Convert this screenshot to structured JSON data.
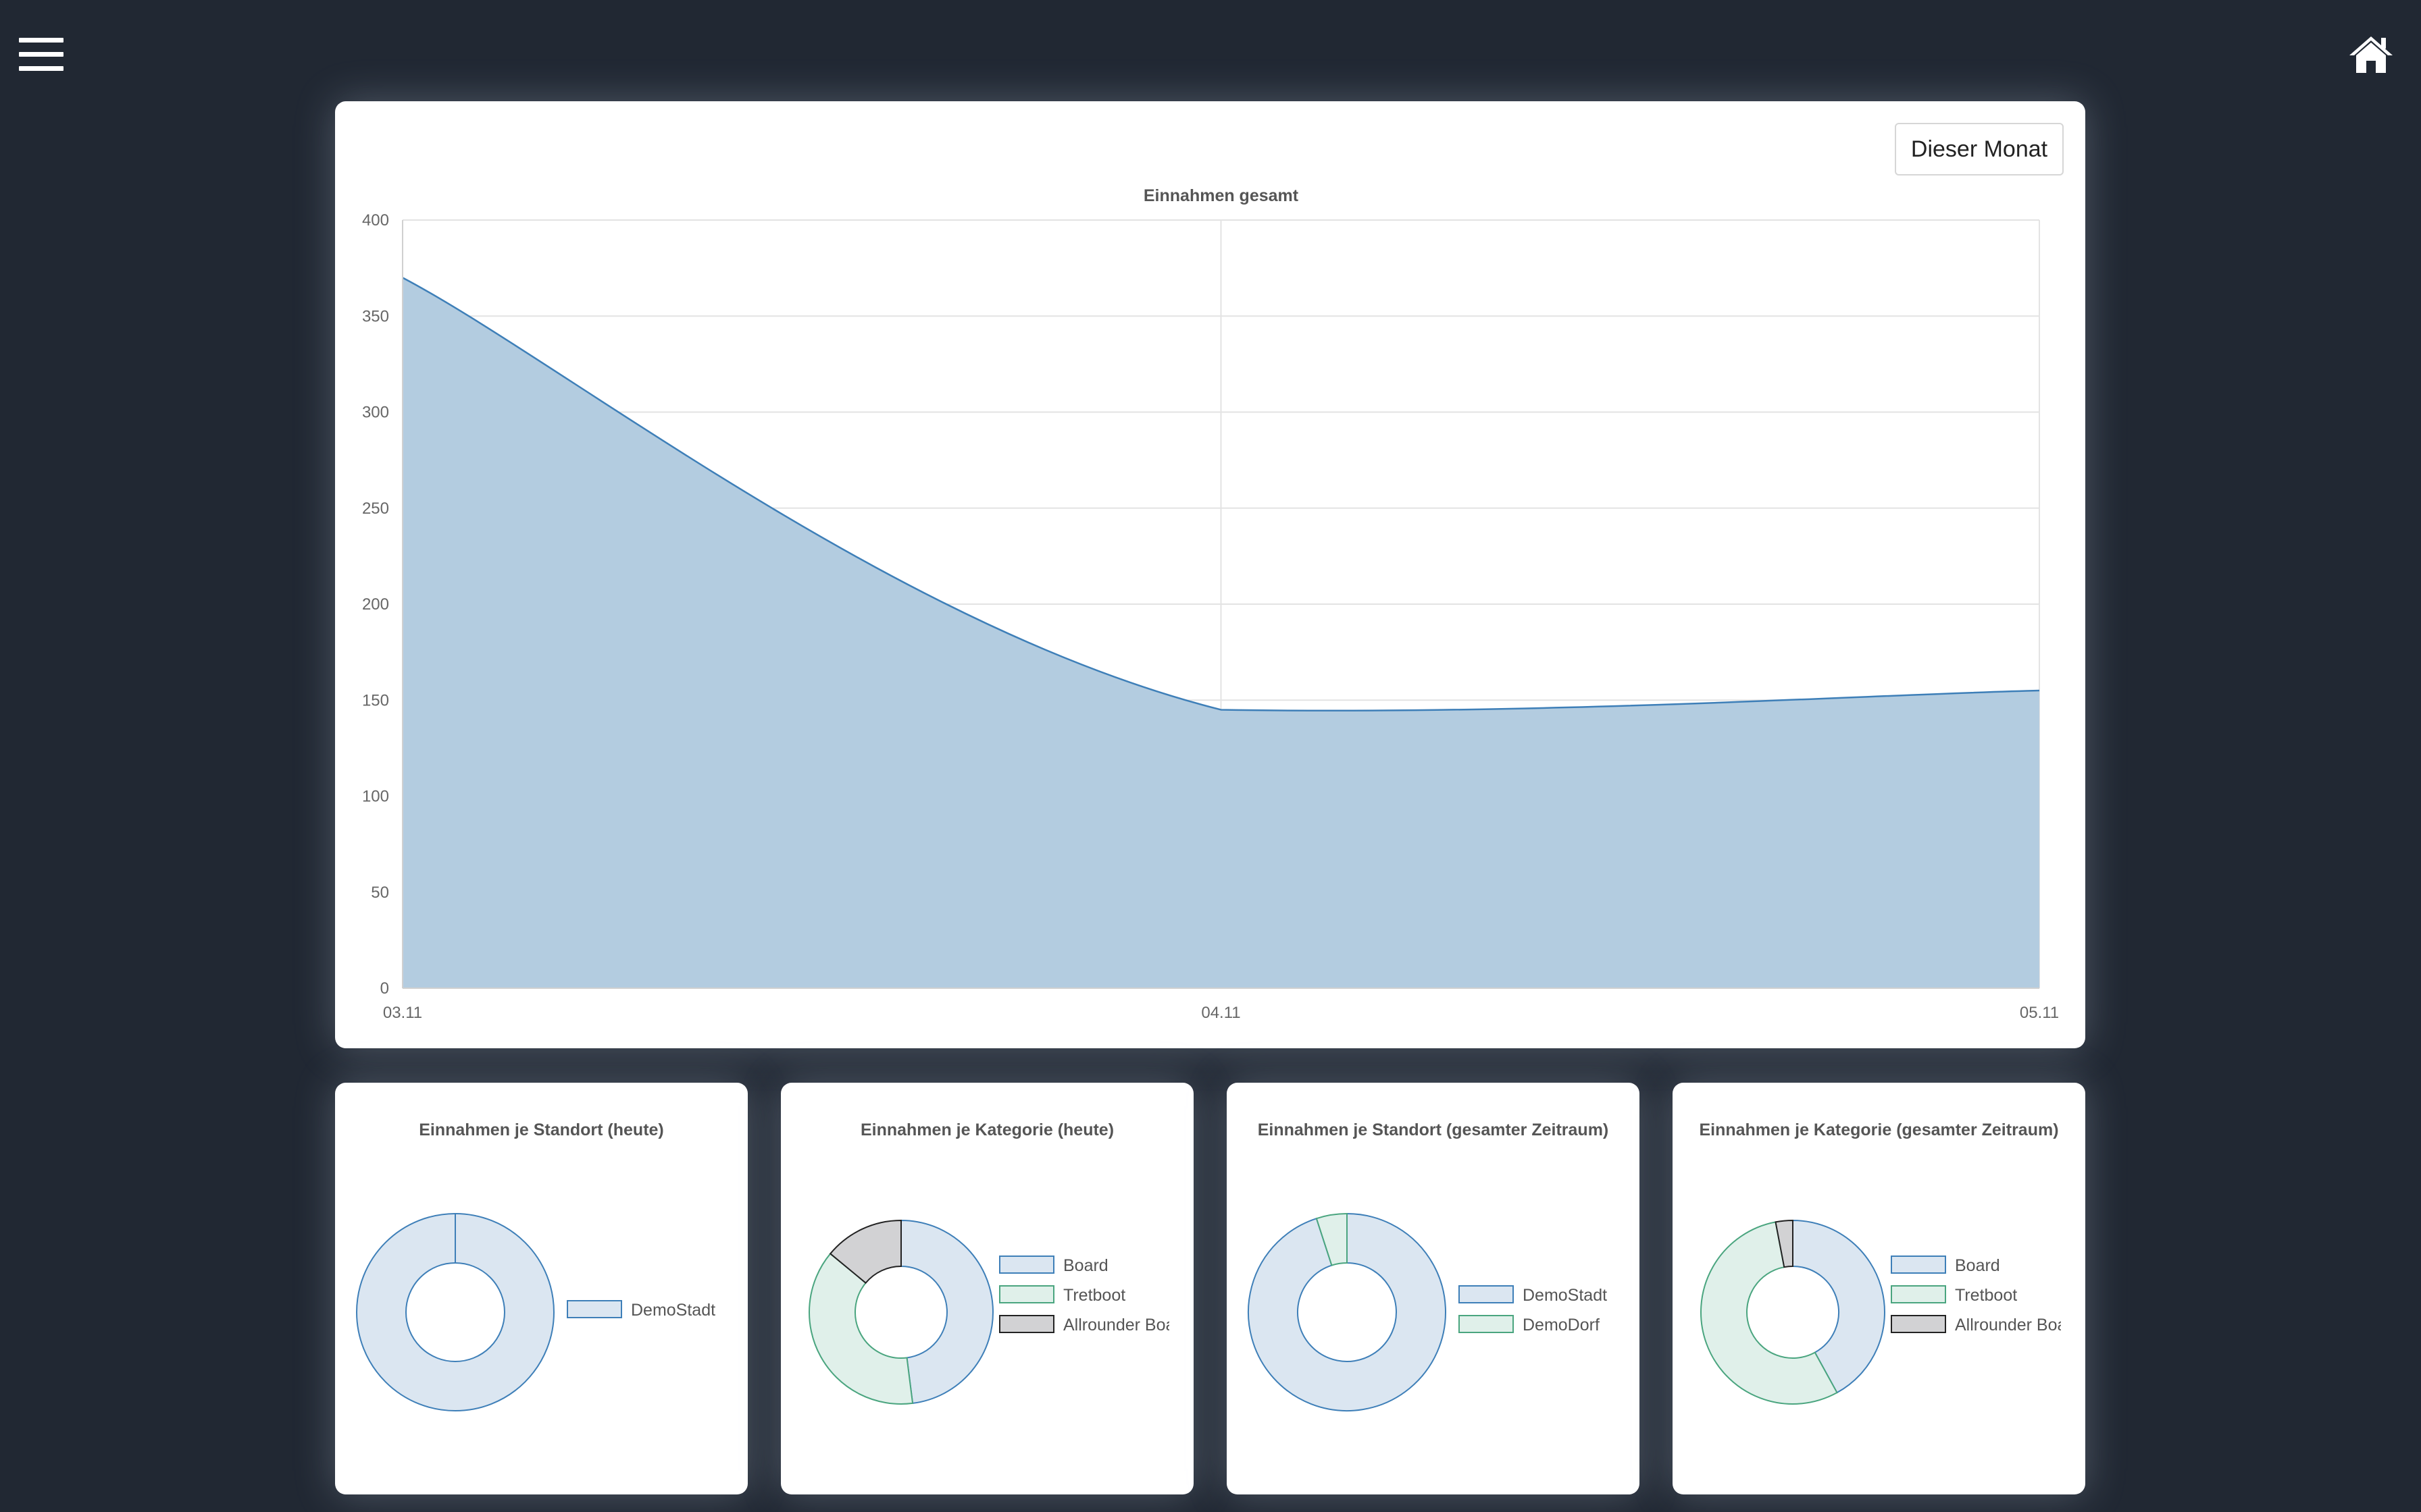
{
  "nav": {
    "menu_icon": "hamburger-menu-icon",
    "home_icon": "home-icon"
  },
  "main": {
    "period_button": "Dieser Monat"
  },
  "colors": {
    "blue_fill": "#b3cce0",
    "blue_line": "#3e7fb8",
    "blue_light": "#dbe6f1",
    "green_light": "#e0f0ea",
    "green_line": "#4aa57f",
    "grey_light": "#d2d2d4",
    "grey_line": "#222222"
  },
  "chart_data": [
    {
      "type": "area",
      "title": "Einnahmen gesamt",
      "x": [
        "03.11",
        "04.11",
        "05.11"
      ],
      "values": [
        370,
        145,
        155
      ],
      "ylim": [
        0,
        400
      ],
      "yticks": [
        0,
        50,
        100,
        150,
        200,
        250,
        300,
        350,
        400
      ],
      "grid": true
    },
    {
      "type": "pie",
      "title": "Einnahmen je Standort (heute)",
      "labels": [
        "DemoStadt"
      ],
      "values": [
        100
      ],
      "legend": "right"
    },
    {
      "type": "pie",
      "title": "Einnahmen je Kategorie (heute)",
      "labels": [
        "Board",
        "Tretboot",
        "Allrounder Boar"
      ],
      "values": [
        48,
        38,
        14
      ],
      "legend": "right"
    },
    {
      "type": "pie",
      "title": "Einnahmen je Standort (gesamter Zeitraum)",
      "labels": [
        "DemoStadt",
        "DemoDorf"
      ],
      "values": [
        95,
        5
      ],
      "legend": "right"
    },
    {
      "type": "pie",
      "title": "Einnahmen je Kategorie (gesamter Zeitraum)",
      "labels": [
        "Board",
        "Tretboot",
        "Allrounder Boar"
      ],
      "values": [
        42,
        55,
        3
      ],
      "legend": "right"
    }
  ]
}
